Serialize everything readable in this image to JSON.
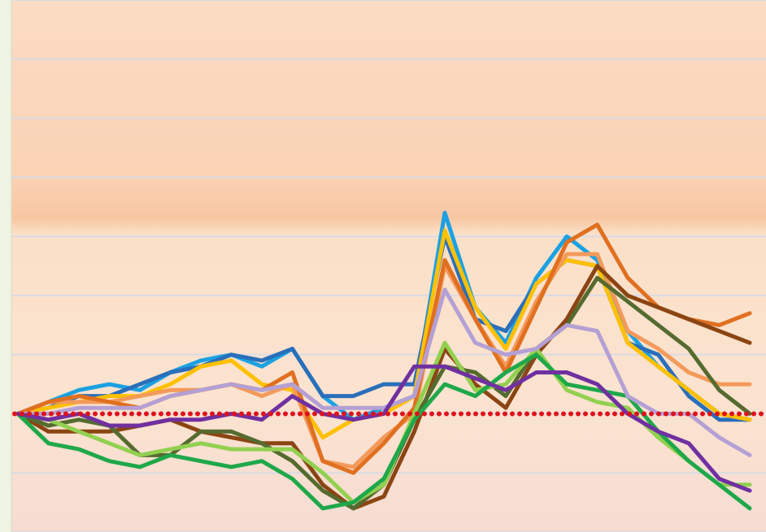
{
  "chart_data": {
    "type": "line",
    "categories": [
      null,
      null,
      null,
      null,
      null,
      null,
      null,
      null,
      null,
      null,
      null,
      null,
      null,
      null,
      null,
      null,
      null,
      null,
      null,
      null,
      null,
      null,
      null,
      null,
      null
    ],
    "ylim": [
      -2,
      7
    ],
    "yticks": [
      -2,
      -1,
      0,
      1,
      2,
      3,
      4,
      5,
      6,
      7
    ],
    "grid": true,
    "reference_line": {
      "value": 0,
      "color": "#e0101a"
    },
    "series": [
      {
        "color": "#1ba1e2",
        "values": [
          0,
          0.2,
          0.4,
          0.5,
          0.4,
          0.7,
          0.9,
          1.0,
          0.8,
          1.1,
          0.3,
          -0.1,
          0.1,
          0.3,
          3.4,
          1.8,
          1.2,
          2.3,
          3.0,
          2.6,
          1.4,
          0.8,
          0.4,
          0,
          -0.1
        ]
      },
      {
        "color": "#2a6fba",
        "values": [
          0,
          0.1,
          0.3,
          0.3,
          0.5,
          0.7,
          0.8,
          1.0,
          0.9,
          1.1,
          0.3,
          0.3,
          0.5,
          0.5,
          3.0,
          1.6,
          1.4,
          2.2,
          2.6,
          2.5,
          1.2,
          1.0,
          0.3,
          -0.1,
          -0.1
        ]
      },
      {
        "color": "#ffc000",
        "values": [
          0,
          0.1,
          0.2,
          0.3,
          0.3,
          0.5,
          0.8,
          0.9,
          0.5,
          0.4,
          -0.4,
          -0.1,
          0,
          0.3,
          3.1,
          1.8,
          1.1,
          2.2,
          2.6,
          2.5,
          1.2,
          0.8,
          0.4,
          0,
          -0.1
        ]
      },
      {
        "color": "#f39a5b",
        "values": [
          0,
          0.2,
          0.2,
          0.2,
          0.3,
          0.4,
          0.4,
          0.5,
          0.3,
          0.5,
          -0.8,
          -0.9,
          -0.4,
          0,
          2.5,
          1.6,
          0.8,
          1.9,
          2.7,
          2.7,
          1.4,
          1.1,
          0.7,
          0.5,
          0.5
        ]
      },
      {
        "color": "#e07020",
        "values": [
          0,
          0.2,
          0.3,
          0.2,
          0.1,
          0.3,
          0.4,
          0.5,
          0.4,
          0.7,
          -0.8,
          -1.0,
          -0.5,
          0.1,
          2.6,
          1.6,
          0.7,
          1.8,
          2.9,
          3.2,
          2.3,
          1.8,
          1.6,
          1.5,
          1.7
        ]
      },
      {
        "color": "#8b4513",
        "values": [
          0,
          -0.3,
          -0.3,
          -0.3,
          -0.2,
          -0.1,
          -0.3,
          -0.4,
          -0.5,
          -0.5,
          -1.2,
          -1.6,
          -1.4,
          -0.3,
          1.1,
          0.5,
          0.1,
          1.0,
          1.6,
          2.5,
          2.0,
          1.8,
          1.6,
          1.4,
          1.2
        ]
      },
      {
        "color": "#556b2f",
        "values": [
          0,
          -0.2,
          -0.1,
          -0.2,
          -0.7,
          -0.7,
          -0.3,
          -0.3,
          -0.5,
          -0.8,
          -1.3,
          -1.6,
          -1.2,
          -0.1,
          0.8,
          0.7,
          0.3,
          1.1,
          1.5,
          2.3,
          1.9,
          1.5,
          1.1,
          0.4,
          0
        ]
      },
      {
        "color": "#92d050",
        "values": [
          0,
          -0.1,
          -0.3,
          -0.5,
          -0.7,
          -0.6,
          -0.5,
          -0.6,
          -0.6,
          -0.6,
          -1.0,
          -1.5,
          -1.2,
          0,
          1.2,
          0.4,
          0.5,
          1.1,
          0.4,
          0.2,
          0.1,
          -0.4,
          -0.8,
          -1.2,
          -1.2
        ]
      },
      {
        "color": "#1fa84a",
        "values": [
          0,
          -0.5,
          -0.6,
          -0.8,
          -0.9,
          -0.7,
          -0.8,
          -0.9,
          -0.8,
          -1.1,
          -1.6,
          -1.5,
          -1.1,
          -0.1,
          0.5,
          0.3,
          0.7,
          1.0,
          0.5,
          0.4,
          0.3,
          -0.3,
          -0.8,
          -1.2,
          -1.6
        ]
      },
      {
        "color": "#b4a0d4",
        "values": [
          0,
          0,
          0.1,
          0.1,
          0.1,
          0.3,
          0.4,
          0.5,
          0.4,
          0.5,
          0.1,
          0.1,
          0.1,
          0.3,
          2.1,
          1.2,
          1.0,
          1.1,
          1.5,
          1.4,
          0.3,
          0,
          0,
          -0.4,
          -0.7
        ]
      },
      {
        "color": "#7030a0",
        "values": [
          0,
          -0.1,
          0,
          -0.2,
          -0.2,
          -0.1,
          -0.1,
          0,
          -0.1,
          0.3,
          0,
          -0.1,
          0,
          0.8,
          0.8,
          0.6,
          0.4,
          0.7,
          0.7,
          0.5,
          0,
          -0.3,
          -0.5,
          -1.1,
          -1.3
        ]
      }
    ]
  }
}
